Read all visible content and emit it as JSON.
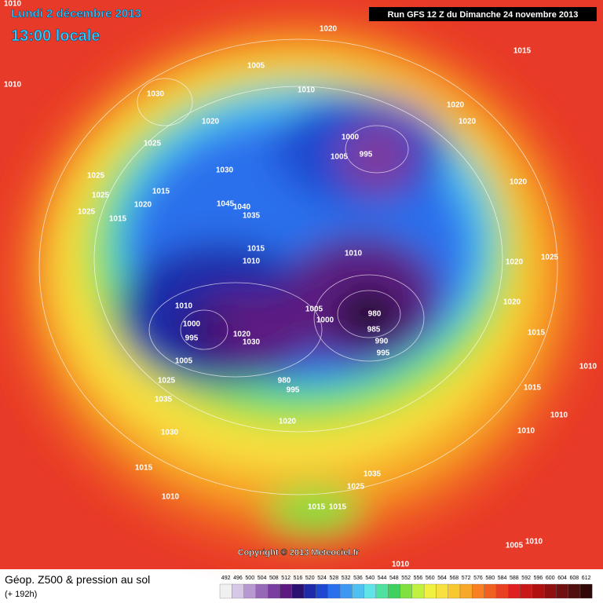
{
  "header": {
    "date": "Lundi 2 décembre 2013",
    "time": "13:00 locale",
    "run": "Run GFS 12 Z du Dimanche 24 novembre 2013"
  },
  "copyright": "Copyright © 2013 Meteociel.fr",
  "footer": {
    "title": "Géop. Z500 & pression au sol",
    "lead": "(+ 192h)"
  },
  "pressure_labels": [
    1010,
    1020,
    1015,
    1010,
    1005,
    1030,
    1010,
    1020,
    1020,
    1020,
    1025,
    1000,
    995,
    1005,
    1030,
    1025,
    1020,
    1015,
    1025,
    1020,
    1045,
    1040,
    1025,
    1035,
    1015,
    1015,
    1010,
    1025,
    1010,
    1020,
    1010,
    1005,
    1020,
    980,
    1000,
    1000,
    985,
    1030,
    995,
    1020,
    1015,
    990,
    995,
    1005,
    1010,
    980,
    1025,
    995,
    1015,
    1035,
    1010,
    1020,
    1030,
    1010,
    1015,
    1035,
    1025,
    1010,
    1015,
    1015,
    1005,
    1010,
    1010
  ],
  "legend": [
    {
      "label": 492,
      "color": "#f0f0f0"
    },
    {
      "label": 496,
      "color": "#d8c8e8"
    },
    {
      "label": 500,
      "color": "#b898d0"
    },
    {
      "label": 504,
      "color": "#9868b8"
    },
    {
      "label": 508,
      "color": "#7a3ea0"
    },
    {
      "label": 512,
      "color": "#5c1a80"
    },
    {
      "label": 516,
      "color": "#2a1070"
    },
    {
      "label": 520,
      "color": "#1e2aa8"
    },
    {
      "label": 524,
      "color": "#1e48d0"
    },
    {
      "label": 528,
      "color": "#2a70ec"
    },
    {
      "label": 532,
      "color": "#3c98f0"
    },
    {
      "label": 536,
      "color": "#50c0f0"
    },
    {
      "label": 540,
      "color": "#60e4e8"
    },
    {
      "label": 544,
      "color": "#50e0a0"
    },
    {
      "label": 548,
      "color": "#40d060"
    },
    {
      "label": 552,
      "color": "#80e040"
    },
    {
      "label": 556,
      "color": "#c0f040"
    },
    {
      "label": 560,
      "color": "#f0f040"
    },
    {
      "label": 564,
      "color": "#f8e040"
    },
    {
      "label": 568,
      "color": "#f8c830"
    },
    {
      "label": 572,
      "color": "#f8a828"
    },
    {
      "label": 576,
      "color": "#f88020"
    },
    {
      "label": 580,
      "color": "#f06020"
    },
    {
      "label": 584,
      "color": "#e84020"
    },
    {
      "label": 588,
      "color": "#e02020"
    },
    {
      "label": 592,
      "color": "#c81818"
    },
    {
      "label": 596,
      "color": "#b01010"
    },
    {
      "label": 600,
      "color": "#901010"
    },
    {
      "label": 604,
      "color": "#701010"
    },
    {
      "label": 608,
      "color": "#501010"
    },
    {
      "label": 612,
      "color": "#300808"
    }
  ]
}
